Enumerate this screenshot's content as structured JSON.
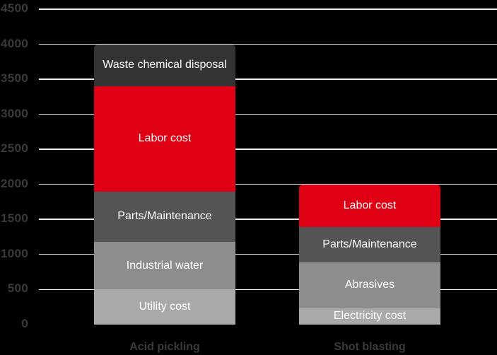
{
  "background_color": "#000000",
  "chart_data": {
    "type": "bar",
    "stacked": true,
    "title": "",
    "xlabel": "",
    "ylabel": "",
    "legend": "none",
    "grid": "horizontal",
    "gridline_color": "#ededed",
    "tick_label_color": "#3a3a3a",
    "category_label_color": "#3a3a3a",
    "segment_text_color": "#ffffff",
    "y_axis": {
      "min": 0,
      "max": 4500,
      "step": 500,
      "ticks": [
        0,
        500,
        1000,
        1500,
        2000,
        2500,
        3000,
        3500,
        4000,
        4500
      ],
      "gridlines_start_at": 500
    },
    "categories": [
      "Acid pickling",
      "Shot blasting"
    ],
    "bars": [
      {
        "category": "Acid pickling",
        "total": 4000,
        "segments": [
          {
            "label": "Utility cost",
            "value": 500,
            "color": "#a9a9a9"
          },
          {
            "label": "Industrial water",
            "value": 680,
            "color": "#8d8d8d"
          },
          {
            "label": "Parts/Maintenance",
            "value": 720,
            "color": "#545454"
          },
          {
            "label": "Labor cost",
            "value": 1500,
            "color": "#e00013"
          },
          {
            "label": "Waste chemical disposal",
            "value": 600,
            "color": "#333333"
          }
        ]
      },
      {
        "category": "Shot blasting",
        "total": 2000,
        "segments": [
          {
            "label": "Electricity cost",
            "value": 230,
            "color": "#a9a9a9"
          },
          {
            "label": "Abrasives",
            "value": 660,
            "color": "#8d8d8d"
          },
          {
            "label": "Parts/Maintenance",
            "value": 500,
            "color": "#545454"
          },
          {
            "label": "Labor cost",
            "value": 610,
            "color": "#e00013"
          }
        ]
      }
    ]
  }
}
